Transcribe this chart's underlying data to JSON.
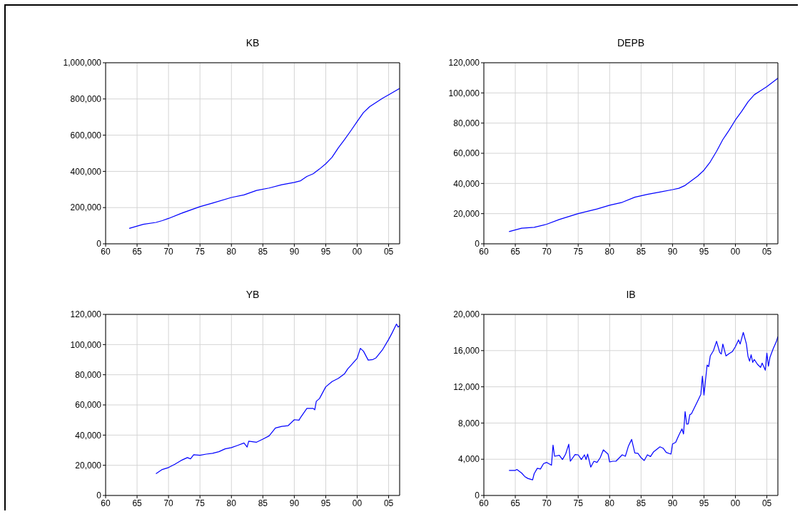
{
  "chart_data": [
    {
      "type": "line",
      "title": "KB",
      "color": "#0000ff",
      "grid": true,
      "xlim": [
        1960,
        2006.75
      ],
      "ylim": [
        0,
        1000000
      ],
      "xticks": [
        {
          "value": 1960,
          "label": "60"
        },
        {
          "value": 1965,
          "label": "65"
        },
        {
          "value": 1970,
          "label": "70"
        },
        {
          "value": 1975,
          "label": "75"
        },
        {
          "value": 1980,
          "label": "80"
        },
        {
          "value": 1985,
          "label": "85"
        },
        {
          "value": 1990,
          "label": "90"
        },
        {
          "value": 1995,
          "label": "95"
        },
        {
          "value": 2000,
          "label": "00"
        },
        {
          "value": 2005,
          "label": "05"
        }
      ],
      "yticks": [
        {
          "value": 0,
          "label": "0"
        },
        {
          "value": 200000,
          "label": "200,000"
        },
        {
          "value": 400000,
          "label": "400,000"
        },
        {
          "value": 600000,
          "label": "600,000"
        },
        {
          "value": 800000,
          "label": "800,000"
        },
        {
          "value": 1000000,
          "label": "1,000,000"
        }
      ],
      "x": [
        1963.75,
        1966,
        1968,
        1969,
        1970,
        1972,
        1975,
        1977,
        1980,
        1982,
        1984,
        1986,
        1988,
        1990,
        1991,
        1992,
        1993,
        1994,
        1995,
        1996,
        1997,
        1998,
        1999,
        2000,
        2001,
        2002,
        2003,
        2004,
        2005,
        2006.75
      ],
      "values": [
        85000,
        108000,
        118000,
        128000,
        140000,
        168000,
        205000,
        225000,
        256000,
        270000,
        295000,
        308000,
        326000,
        339000,
        348000,
        372000,
        387000,
        413000,
        442000,
        478000,
        530000,
        576000,
        625000,
        676000,
        725000,
        758000,
        781000,
        803000,
        823000,
        858000
      ]
    },
    {
      "type": "line",
      "title": "DEPB",
      "color": "#0000ff",
      "grid": true,
      "xlim": [
        1960,
        2006.75
      ],
      "ylim": [
        0,
        120000
      ],
      "xticks": [
        {
          "value": 1960,
          "label": "60"
        },
        {
          "value": 1965,
          "label": "65"
        },
        {
          "value": 1970,
          "label": "70"
        },
        {
          "value": 1975,
          "label": "75"
        },
        {
          "value": 1980,
          "label": "80"
        },
        {
          "value": 1985,
          "label": "85"
        },
        {
          "value": 1990,
          "label": "90"
        },
        {
          "value": 1995,
          "label": "95"
        },
        {
          "value": 2000,
          "label": "00"
        },
        {
          "value": 2005,
          "label": "05"
        }
      ],
      "yticks": [
        {
          "value": 0,
          "label": "0"
        },
        {
          "value": 20000,
          "label": "20,000"
        },
        {
          "value": 40000,
          "label": "40,000"
        },
        {
          "value": 60000,
          "label": "60,000"
        },
        {
          "value": 80000,
          "label": "80,000"
        },
        {
          "value": 100000,
          "label": "100,000"
        },
        {
          "value": 120000,
          "label": "120,000"
        }
      ],
      "x": [
        1964,
        1966,
        1968,
        1970,
        1972,
        1975,
        1978,
        1980,
        1982,
        1984,
        1986,
        1988,
        1990,
        1991,
        1992,
        1993,
        1994,
        1995,
        1996,
        1997,
        1998,
        1999,
        2000,
        2001,
        2002,
        2003,
        2004,
        2005,
        2006.75
      ],
      "values": [
        8100,
        10300,
        10900,
        13000,
        16100,
        20000,
        23100,
        25600,
        27500,
        30900,
        32800,
        34300,
        35900,
        36800,
        38700,
        41800,
        44900,
        48800,
        54300,
        61300,
        69100,
        75300,
        82100,
        87800,
        94100,
        98800,
        101500,
        104200,
        109700
      ]
    },
    {
      "type": "line",
      "title": "YB",
      "color": "#0000ff",
      "grid": true,
      "xlim": [
        1960,
        2006.75
      ],
      "ylim": [
        0,
        120000
      ],
      "xticks": [
        {
          "value": 1960,
          "label": "60"
        },
        {
          "value": 1965,
          "label": "65"
        },
        {
          "value": 1970,
          "label": "70"
        },
        {
          "value": 1975,
          "label": "75"
        },
        {
          "value": 1980,
          "label": "80"
        },
        {
          "value": 1985,
          "label": "85"
        },
        {
          "value": 1990,
          "label": "90"
        },
        {
          "value": 1995,
          "label": "95"
        },
        {
          "value": 2000,
          "label": "00"
        },
        {
          "value": 2005,
          "label": "05"
        }
      ],
      "yticks": [
        {
          "value": 0,
          "label": "0"
        },
        {
          "value": 20000,
          "label": "20,000"
        },
        {
          "value": 40000,
          "label": "40,000"
        },
        {
          "value": 60000,
          "label": "60,000"
        },
        {
          "value": 80000,
          "label": "80,000"
        },
        {
          "value": 100000,
          "label": "100,000"
        },
        {
          "value": 120000,
          "label": "120,000"
        }
      ],
      "x": [
        1968,
        1969,
        1970,
        1971,
        1972,
        1973,
        1973.5,
        1974,
        1975,
        1976,
        1977,
        1978,
        1979,
        1980,
        1981,
        1982,
        1982.5,
        1982.75,
        1984,
        1985,
        1986,
        1987,
        1988,
        1989,
        1990,
        1990.75,
        1991,
        1992,
        1993,
        1993.25,
        1993.5,
        1994,
        1995,
        1996,
        1997,
        1998,
        1998.5,
        1999,
        2000,
        2000.5,
        2001,
        2001.75,
        2002.5,
        2003,
        2004,
        2005,
        2005.5,
        2006.25,
        2006.5,
        2006.75
      ],
      "values": [
        14400,
        17200,
        18500,
        20700,
        23200,
        25100,
        24300,
        27000,
        26600,
        27400,
        27900,
        29000,
        30900,
        31700,
        33200,
        34800,
        32100,
        36000,
        35300,
        37300,
        39500,
        44700,
        45800,
        46200,
        50200,
        49900,
        51700,
        57700,
        57700,
        56800,
        62400,
        64200,
        72000,
        75500,
        77600,
        80700,
        83900,
        86200,
        90900,
        97500,
        95600,
        89700,
        90100,
        91200,
        96400,
        103400,
        107300,
        113600,
        111600,
        112500
      ]
    },
    {
      "type": "line",
      "title": "IB",
      "color": "#0000ff",
      "grid": true,
      "xlim": [
        1960,
        2006.75
      ],
      "ylim": [
        0,
        20000
      ],
      "xticks": [
        {
          "value": 1960,
          "label": "60"
        },
        {
          "value": 1965,
          "label": "65"
        },
        {
          "value": 1970,
          "label": "70"
        },
        {
          "value": 1975,
          "label": "75"
        },
        {
          "value": 1980,
          "label": "80"
        },
        {
          "value": 1985,
          "label": "85"
        },
        {
          "value": 1990,
          "label": "90"
        },
        {
          "value": 1995,
          "label": "95"
        },
        {
          "value": 2000,
          "label": "00"
        },
        {
          "value": 2005,
          "label": "05"
        }
      ],
      "yticks": [
        {
          "value": 0,
          "label": "0"
        },
        {
          "value": 4000,
          "label": "4,000"
        },
        {
          "value": 8000,
          "label": "8,000"
        },
        {
          "value": 12000,
          "label": "12,000"
        },
        {
          "value": 16000,
          "label": "16,000"
        },
        {
          "value": 20000,
          "label": "20,000"
        }
      ],
      "x": [
        1964,
        1965,
        1965.25,
        1966,
        1966.5,
        1967,
        1967.75,
        1968,
        1968.5,
        1969,
        1969.5,
        1970,
        1970.75,
        1971,
        1971.25,
        1972,
        1972.5,
        1973,
        1973.5,
        1973.75,
        1974.5,
        1975,
        1975.5,
        1976,
        1976.25,
        1976.5,
        1977,
        1977.5,
        1978,
        1978.5,
        1979,
        1979.75,
        1980,
        1980.5,
        1981,
        1982,
        1982.5,
        1983,
        1983.5,
        1984,
        1984.5,
        1985,
        1985.5,
        1986,
        1986.5,
        1987,
        1988,
        1988.5,
        1989,
        1989.75,
        1990,
        1990.5,
        1991,
        1991.5,
        1991.75,
        1992,
        1992.25,
        1992.5,
        1992.75,
        1993,
        1994,
        1994.5,
        1994.75,
        1995,
        1995.25,
        1995.5,
        1995.75,
        1996,
        1996.5,
        1997,
        1997.5,
        1997.75,
        1998,
        1998.5,
        1999,
        1999.5,
        2000,
        2000.5,
        2000.75,
        2001.25,
        2001.75,
        2002,
        2002.25,
        2002.5,
        2002.75,
        2003,
        2003.5,
        2004,
        2004.25,
        2004.75,
        2005,
        2005.25,
        2005.5,
        2006,
        2006.5,
        2006.75
      ],
      "values": [
        2770,
        2770,
        2870,
        2480,
        2090,
        1880,
        1720,
        2400,
        3000,
        2920,
        3520,
        3650,
        3340,
        5560,
        4330,
        4440,
        3970,
        4570,
        5660,
        3780,
        4520,
        4490,
        3970,
        4490,
        3970,
        4570,
        3130,
        3780,
        3650,
        4170,
        5040,
        4570,
        3700,
        3780,
        3780,
        4490,
        4330,
        5480,
        6190,
        4700,
        4650,
        4170,
        3860,
        4490,
        4300,
        4830,
        5370,
        5220,
        4750,
        4570,
        5690,
        5870,
        6660,
        7360,
        6790,
        9270,
        7880,
        7910,
        8930,
        9010,
        10440,
        11170,
        13180,
        11090,
        12790,
        14410,
        14230,
        15410,
        15980,
        17030,
        15800,
        15620,
        16720,
        15410,
        15670,
        15880,
        16440,
        17190,
        16720,
        18010,
        16720,
        15360,
        14830,
        15540,
        14700,
        15020,
        14490,
        14150,
        14620,
        13830,
        15720,
        14280,
        15280,
        16200,
        16980,
        17550
      ]
    }
  ]
}
